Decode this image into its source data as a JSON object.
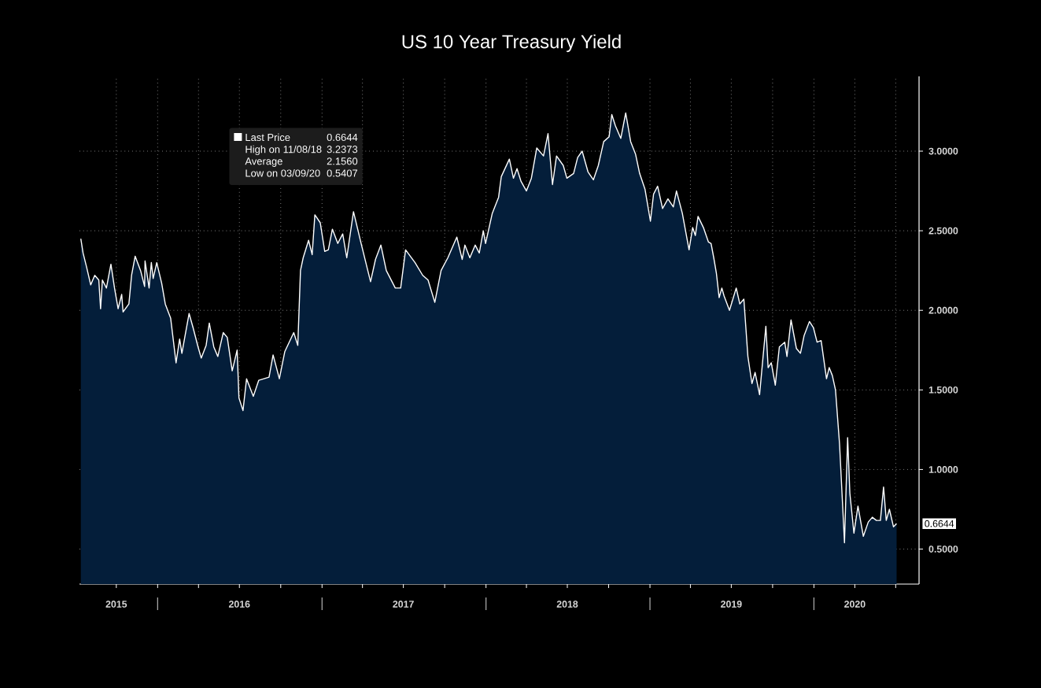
{
  "chart_data": {
    "type": "area",
    "title": "US 10 Year Treasury Yield",
    "xlim": [
      "2015-07-11",
      "2020-08-22"
    ],
    "ylim": [
      0.28,
      3.47
    ],
    "xticks": [
      {
        "value": "2015-10-01",
        "label": "2015"
      },
      {
        "value": "2016-01-01",
        "label": null
      },
      {
        "value": "2016-04-01",
        "label": null
      },
      {
        "value": "2016-07-01",
        "label": "2016"
      },
      {
        "value": "2016-10-01",
        "label": null
      },
      {
        "value": "2017-01-01",
        "label": null
      },
      {
        "value": "2017-04-01",
        "label": null
      },
      {
        "value": "2017-07-01",
        "label": "2017"
      },
      {
        "value": "2017-10-01",
        "label": null
      },
      {
        "value": "2018-01-01",
        "label": null
      },
      {
        "value": "2018-04-01",
        "label": null
      },
      {
        "value": "2018-07-01",
        "label": "2018"
      },
      {
        "value": "2018-10-01",
        "label": null
      },
      {
        "value": "2019-01-01",
        "label": null
      },
      {
        "value": "2019-04-01",
        "label": null
      },
      {
        "value": "2019-07-01",
        "label": "2019"
      },
      {
        "value": "2019-10-01",
        "label": null
      },
      {
        "value": "2020-01-01",
        "label": null
      },
      {
        "value": "2020-04-01",
        "label": "2020"
      },
      {
        "value": "2020-07-01",
        "label": null
      }
    ],
    "yticks": [
      {
        "value": 0.5,
        "label": "0.5000"
      },
      {
        "value": 1.0,
        "label": "1.0000"
      },
      {
        "value": 1.5,
        "label": "1.5000"
      },
      {
        "value": 2.0,
        "label": "2.0000"
      },
      {
        "value": 2.5,
        "label": "2.5000"
      },
      {
        "value": 3.0,
        "label": "3.0000"
      }
    ],
    "grid": true,
    "legend": "top left",
    "annotations": [
      "0.6644",
      "High on 11/08/18",
      "3.2373",
      "Average",
      "2.1560",
      "Low on 03/09/20",
      "0.5407",
      "0.6644"
    ],
    "series": [
      {
        "name": "Last Price",
        "color": "#ffffff",
        "x": [
          "2015-07-14",
          "2015-07-19",
          "2015-07-27",
          "2015-08-05",
          "2015-08-14",
          "2015-08-23",
          "2015-08-27",
          "2015-08-31",
          "2015-09-09",
          "2015-09-19",
          "2015-09-27",
          "2015-10-05",
          "2015-10-13",
          "2015-10-16",
          "2015-10-29",
          "2015-11-04",
          "2015-11-12",
          "2015-11-24",
          "2015-12-03",
          "2015-12-04",
          "2015-12-13",
          "2015-12-18",
          "2015-12-22",
          "2015-12-30",
          "2016-01-10",
          "2016-01-18",
          "2016-01-30",
          "2016-02-11",
          "2016-02-19",
          "2016-02-24",
          "2016-03-02",
          "2016-03-11",
          "2016-03-20",
          "2016-03-31",
          "2016-04-07",
          "2016-04-18",
          "2016-04-25",
          "2016-05-05",
          "2016-05-14",
          "2016-05-26",
          "2016-06-04",
          "2016-06-15",
          "2016-06-26",
          "2016-06-30",
          "2016-07-09",
          "2016-07-17",
          "2016-08-01",
          "2016-08-13",
          "2016-09-05",
          "2016-09-14",
          "2016-09-28",
          "2016-10-10",
          "2016-10-30",
          "2016-11-08",
          "2016-11-14",
          "2016-11-20",
          "2016-12-02",
          "2016-12-10",
          "2016-12-16",
          "2016-12-28",
          "2017-01-07",
          "2017-01-15",
          "2017-01-24",
          "2017-02-05",
          "2017-02-16",
          "2017-02-25",
          "2017-03-12",
          "2017-03-29",
          "2017-04-19",
          "2017-04-30",
          "2017-05-12",
          "2017-05-24",
          "2017-06-13",
          "2017-06-25",
          "2017-07-06",
          "2017-07-27",
          "2017-08-13",
          "2017-08-25",
          "2017-09-09",
          "2017-09-23",
          "2017-10-08",
          "2017-10-28",
          "2017-11-09",
          "2017-11-15",
          "2017-11-26",
          "2017-12-08",
          "2017-12-17",
          "2017-12-26",
          "2017-12-31",
          "2018-01-15",
          "2018-01-29",
          "2018-02-04",
          "2018-02-22",
          "2018-03-03",
          "2018-03-11",
          "2018-03-20",
          "2018-04-01",
          "2018-04-12",
          "2018-04-24",
          "2018-05-09",
          "2018-05-19",
          "2018-05-29",
          "2018-06-07",
          "2018-06-22",
          "2018-06-30",
          "2018-07-15",
          "2018-07-24",
          "2018-08-03",
          "2018-08-16",
          "2018-08-28",
          "2018-09-08",
          "2018-09-20",
          "2018-10-02",
          "2018-10-08",
          "2018-10-16",
          "2018-10-28",
          "2018-11-08",
          "2018-11-19",
          "2018-11-30",
          "2018-12-09",
          "2018-12-21",
          "2019-01-02",
          "2019-01-09",
          "2019-01-18",
          "2019-01-29",
          "2019-02-10",
          "2019-02-22",
          "2019-03-01",
          "2019-03-14",
          "2019-03-29",
          "2019-04-06",
          "2019-04-12",
          "2019-04-18",
          "2019-04-30",
          "2019-05-11",
          "2019-05-17",
          "2019-05-23",
          "2019-05-29",
          "2019-06-04",
          "2019-06-10",
          "2019-06-15",
          "2019-06-27",
          "2019-07-12",
          "2019-07-20",
          "2019-07-29",
          "2019-08-07",
          "2019-08-16",
          "2019-08-23",
          "2019-09-02",
          "2019-09-16",
          "2019-09-21",
          "2019-09-28",
          "2019-10-07",
          "2019-10-16",
          "2019-10-28",
          "2019-11-02",
          "2019-11-11",
          "2019-11-23",
          "2019-12-02",
          "2019-12-10",
          "2019-12-22",
          "2019-12-31",
          "2020-01-08",
          "2020-01-17",
          "2020-01-29",
          "2020-02-04",
          "2020-02-11",
          "2020-02-18",
          "2020-02-27",
          "2020-03-09",
          "2020-03-16",
          "2020-03-21",
          "2020-03-30",
          "2020-04-08",
          "2020-04-20",
          "2020-05-01",
          "2020-05-10",
          "2020-05-19",
          "2020-05-28",
          "2020-06-04",
          "2020-06-10",
          "2020-06-17",
          "2020-06-26",
          "2020-07-03"
        ],
        "values": [
          2.45,
          2.36,
          2.27,
          2.16,
          2.22,
          2.19,
          2.01,
          2.19,
          2.14,
          2.29,
          2.14,
          2.01,
          2.1,
          1.99,
          2.04,
          2.22,
          2.34,
          2.25,
          2.15,
          2.31,
          2.14,
          2.3,
          2.2,
          2.3,
          2.17,
          2.04,
          1.95,
          1.67,
          1.82,
          1.73,
          1.84,
          1.98,
          1.89,
          1.77,
          1.7,
          1.78,
          1.92,
          1.77,
          1.71,
          1.86,
          1.83,
          1.62,
          1.75,
          1.45,
          1.37,
          1.57,
          1.46,
          1.56,
          1.58,
          1.72,
          1.57,
          1.74,
          1.86,
          1.78,
          2.25,
          2.33,
          2.44,
          2.35,
          2.6,
          2.55,
          2.37,
          2.38,
          2.51,
          2.42,
          2.48,
          2.33,
          2.62,
          2.42,
          2.18,
          2.32,
          2.41,
          2.25,
          2.14,
          2.14,
          2.38,
          2.3,
          2.22,
          2.19,
          2.05,
          2.25,
          2.33,
          2.46,
          2.32,
          2.41,
          2.33,
          2.41,
          2.36,
          2.5,
          2.42,
          2.61,
          2.71,
          2.84,
          2.95,
          2.83,
          2.89,
          2.81,
          2.75,
          2.83,
          3.02,
          2.97,
          3.11,
          2.79,
          2.97,
          2.91,
          2.83,
          2.86,
          2.96,
          3.0,
          2.87,
          2.82,
          2.91,
          3.06,
          3.09,
          3.23,
          3.16,
          3.08,
          3.24,
          3.06,
          2.98,
          2.86,
          2.76,
          2.56,
          2.73,
          2.78,
          2.64,
          2.7,
          2.65,
          2.75,
          2.61,
          2.38,
          2.52,
          2.47,
          2.59,
          2.52,
          2.43,
          2.42,
          2.33,
          2.23,
          2.08,
          2.14,
          2.09,
          2.0,
          2.14,
          2.04,
          2.07,
          1.71,
          1.54,
          1.61,
          1.47,
          1.9,
          1.64,
          1.67,
          1.53,
          1.77,
          1.8,
          1.71,
          1.94,
          1.76,
          1.73,
          1.84,
          1.93,
          1.89,
          1.8,
          1.81,
          1.57,
          1.64,
          1.59,
          1.5,
          1.16,
          0.54,
          1.2,
          0.85,
          0.6,
          0.77,
          0.58,
          0.67,
          0.7,
          0.68,
          0.68,
          0.89,
          0.68,
          0.75,
          0.64,
          0.66
        ]
      }
    ]
  }
}
